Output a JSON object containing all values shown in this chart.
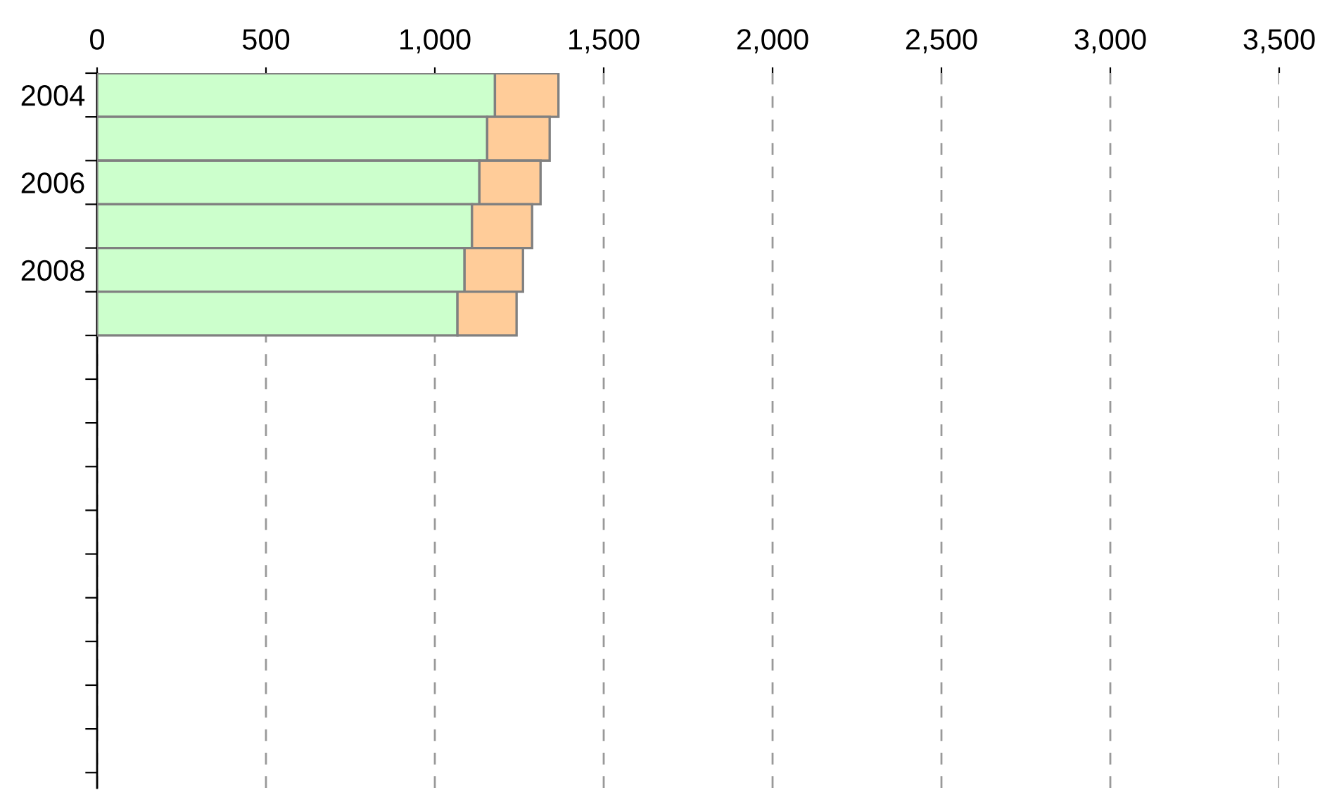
{
  "chart_data": {
    "type": "bar",
    "orientation": "horizontal",
    "stacked": true,
    "categories": [
      "2004",
      null,
      "2006",
      null,
      "2008",
      null,
      null,
      null,
      null,
      null,
      null,
      null,
      null,
      null,
      null,
      null
    ],
    "series": [
      {
        "color": "#ccffcc",
        "values": [
          1178,
          1155,
          1132,
          1110,
          1088,
          1067,
          null,
          null,
          null,
          null,
          null,
          null,
          null,
          null,
          null,
          null
        ]
      },
      {
        "color": "#ffcc99",
        "values": [
          188,
          185,
          181,
          178,
          173,
          175,
          null,
          null,
          null,
          null,
          null,
          null,
          null,
          null,
          null,
          null
        ]
      }
    ],
    "xlim": [
      0,
      3500
    ],
    "xticks": [
      0,
      {
        "value": 500,
        "label": "500"
      },
      {
        "value": 1000,
        "label": "1,000"
      },
      {
        "value": 1500,
        "label": "1,500"
      },
      {
        "value": 2000,
        "label": "2,000"
      },
      {
        "value": 2500,
        "label": "2,500"
      },
      {
        "value": 3000,
        "label": "3,000"
      },
      {
        "value": 3500,
        "label": "3,500"
      }
    ],
    "grid": "x"
  }
}
